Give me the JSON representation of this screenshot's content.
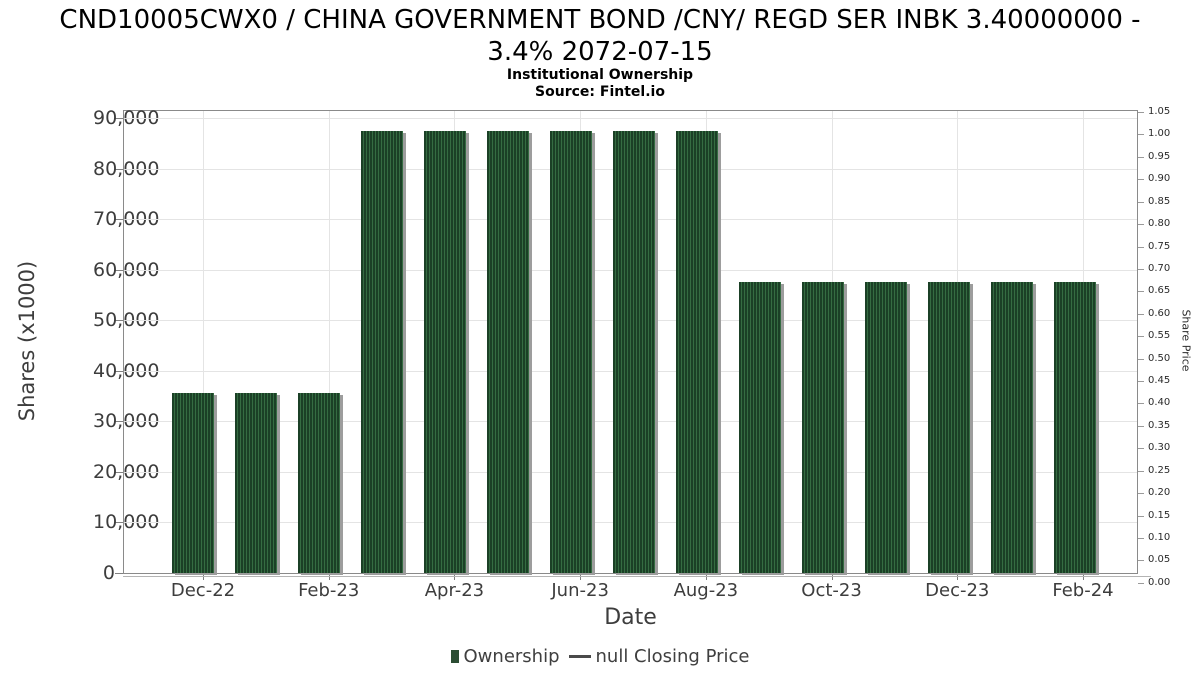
{
  "header": {
    "title_line1": "CND10005CWX0 / CHINA GOVERNMENT BOND /CNY/ REGD SER INBK 3.40000000 -",
    "title_line2": "3.4% 2072-07-15",
    "subtitle": "Institutional Ownership",
    "source": "Source: Fintel.io"
  },
  "legend": {
    "ownership_label": "Ownership",
    "price_label": "null Closing Price"
  },
  "colors": {
    "bar_dark": "#1b4026",
    "bar_stripe": "#356c42",
    "bar_shadow": "#9d9d9d",
    "legend_swatch": "#2b4d33",
    "grid": "#e4e4e4",
    "frame": "#8a8a8a",
    "tick_text": "#3d3d3d"
  },
  "chart_data": {
    "type": "bar",
    "title": "CND10005CWX0 / CHINA GOVERNMENT BOND /CNY/ REGD SER INBK 3.40000000 - 3.4% 2072-07-15",
    "subtitle": "Institutional Ownership",
    "source": "Source: Fintel.io",
    "categories": [
      "Dec-22",
      "Jan-23",
      "Feb-23",
      "Mar-23",
      "Apr-23",
      "May-23",
      "Jun-23",
      "Jul-23",
      "Aug-23",
      "Sep-23",
      "Oct-23",
      "Nov-23",
      "Dec-23",
      "Jan-24",
      "Feb-24"
    ],
    "series": [
      {
        "name": "Ownership",
        "values": [
          35600,
          35600,
          35600,
          87400,
          87400,
          87400,
          87400,
          87400,
          87400,
          57500,
          57500,
          57500,
          57500,
          57500,
          57500
        ]
      },
      {
        "name": "null Closing Price",
        "values": []
      }
    ],
    "xlabel": "Date",
    "x_tick_labels": [
      "Dec-22",
      "Feb-23",
      "Apr-23",
      "Jun-23",
      "Aug-23",
      "Oct-23",
      "Dec-23",
      "Feb-24"
    ],
    "left_axis": {
      "label": "Shares (x1000)",
      "min": 0,
      "max": 90000,
      "tick_step": 10000,
      "tick_labels": [
        "0",
        "10,000",
        "20,000",
        "30,000",
        "40,000",
        "50,000",
        "60,000",
        "70,000",
        "80,000",
        "90,000"
      ]
    },
    "right_axis": {
      "label": "Share Price",
      "min": 0.0,
      "max": 1.05,
      "tick_step": 0.05,
      "tick_labels": [
        "0.00",
        "0.05",
        "0.10",
        "0.15",
        "0.20",
        "0.25",
        "0.30",
        "0.35",
        "0.40",
        "0.45",
        "0.50",
        "0.55",
        "0.60",
        "0.65",
        "0.70",
        "0.75",
        "0.80",
        "0.85",
        "0.90",
        "0.95",
        "1.00",
        "1.05"
      ]
    },
    "grid": true,
    "legend_entries": [
      "Ownership",
      "null Closing Price"
    ],
    "legend_position": "bottom"
  }
}
